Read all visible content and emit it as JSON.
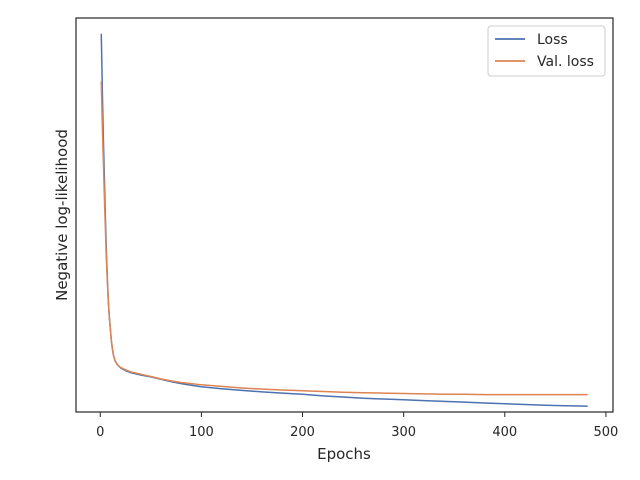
{
  "chart_data": {
    "type": "line",
    "title": "",
    "xlabel": "Epochs",
    "ylabel": "Negative log-likelihood",
    "xlim": [
      -24,
      507
    ],
    "ylim": [
      0.0,
      1.0
    ],
    "xticks": [
      "0",
      "100",
      "200",
      "300",
      "400",
      "500"
    ],
    "xtick_values": [
      0,
      100,
      200,
      300,
      400,
      500
    ],
    "yticks": [],
    "grid": false,
    "legend_position": "top-right",
    "series": [
      {
        "name": "Loss",
        "color": "#4c72b0",
        "x": [
          1,
          2,
          3,
          4,
          5,
          6,
          7,
          8,
          9,
          10,
          11,
          12,
          13,
          14,
          15,
          17,
          20,
          25,
          30,
          40,
          50,
          60,
          70,
          80,
          90,
          100,
          120,
          140,
          160,
          180,
          200,
          220,
          240,
          260,
          280,
          300,
          320,
          340,
          360,
          380,
          400,
          420,
          440,
          460,
          482
        ],
        "y": [
          0.96,
          0.82,
          0.7,
          0.6,
          0.5,
          0.41,
          0.34,
          0.28,
          0.24,
          0.21,
          0.18,
          0.16,
          0.145,
          0.135,
          0.128,
          0.12,
          0.112,
          0.105,
          0.1,
          0.094,
          0.089,
          0.083,
          0.077,
          0.072,
          0.068,
          0.064,
          0.059,
          0.055,
          0.051,
          0.048,
          0.045,
          0.041,
          0.038,
          0.035,
          0.033,
          0.031,
          0.029,
          0.027,
          0.025,
          0.023,
          0.021,
          0.019,
          0.017,
          0.016,
          0.015
        ]
      },
      {
        "name": "Val. loss",
        "color": "#dd8452",
        "x": [
          1,
          2,
          3,
          4,
          5,
          6,
          7,
          8,
          9,
          10,
          11,
          12,
          13,
          14,
          15,
          17,
          20,
          25,
          30,
          40,
          50,
          60,
          70,
          80,
          90,
          100,
          120,
          140,
          160,
          180,
          200,
          220,
          240,
          260,
          280,
          300,
          320,
          340,
          360,
          380,
          400,
          420,
          440,
          460,
          482
        ],
        "y": [
          0.84,
          0.73,
          0.64,
          0.55,
          0.47,
          0.39,
          0.33,
          0.28,
          0.24,
          0.21,
          0.18,
          0.16,
          0.145,
          0.135,
          0.128,
          0.12,
          0.113,
          0.107,
          0.102,
          0.096,
          0.09,
          0.084,
          0.079,
          0.075,
          0.072,
          0.069,
          0.065,
          0.061,
          0.058,
          0.056,
          0.054,
          0.052,
          0.05,
          0.049,
          0.048,
          0.047,
          0.046,
          0.045,
          0.045,
          0.044,
          0.044,
          0.044,
          0.044,
          0.044,
          0.044
        ]
      }
    ]
  }
}
